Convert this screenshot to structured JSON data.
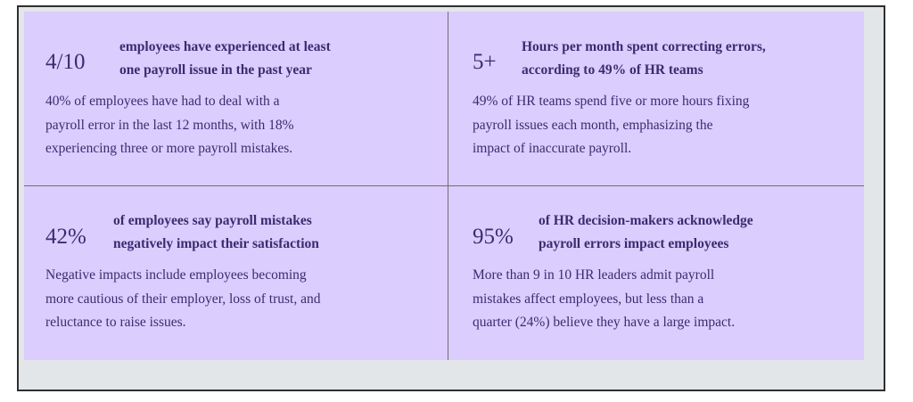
{
  "cards": [
    {
      "stat": "4/10",
      "headline": [
        "employees have experienced at least",
        "one payroll issue in the past year"
      ],
      "description": [
        "40% of employees have had to deal with a",
        "payroll error in the last 12 months, with 18%",
        "experiencing three or more payroll mistakes."
      ]
    },
    {
      "stat": "5+",
      "headline": [
        "Hours per month spent correcting errors,",
        "according to 49% of HR teams"
      ],
      "description": [
        "49% of HR teams spend five or more hours fixing",
        "payroll issues each month, emphasizing the",
        "impact of inaccurate payroll."
      ]
    },
    {
      "stat": "42%",
      "headline": [
        "of employees say payroll mistakes",
        "negatively impact their satisfaction"
      ],
      "description": [
        "Negative impacts include employees becoming",
        "more cautious of their employer, loss of trust, and",
        "reluctance to raise issues."
      ]
    },
    {
      "stat": "95%",
      "headline": [
        "of HR decision-makers acknowledge",
        "payroll errors impact employees"
      ],
      "description": [
        "More than 9 in 10 HR leaders admit payroll",
        "mistakes affect employees, but less than a",
        "quarter (24%) believe they have a large impact."
      ]
    }
  ],
  "colors": {
    "panel": "#dbcdfe",
    "text": "#3a2c6e",
    "frame_bg": "#e3e6e8",
    "border": "#2f2f2f"
  }
}
